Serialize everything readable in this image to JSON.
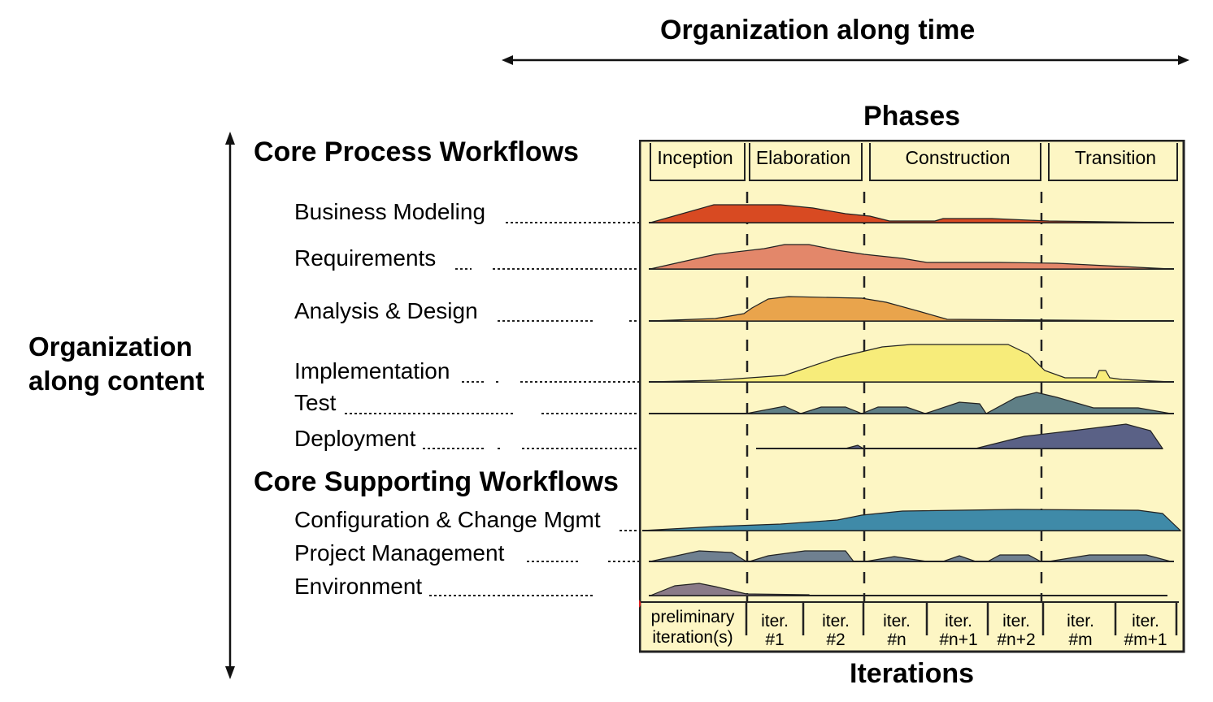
{
  "top_title": "Organization along time",
  "side_title_line1": "Organization",
  "side_title_line2": "along content",
  "phases_title": "Phases",
  "iterations_title": "Iterations",
  "core_process_title": "Core Process Workflows",
  "core_supporting_title": "Core Supporting Workflows",
  "phases": [
    "Inception",
    "Elaboration",
    "Construction",
    "Transition"
  ],
  "workflows": [
    {
      "label": "Business Modeling",
      "color": "#d84a22"
    },
    {
      "label": "Requirements",
      "color": "#e3876a"
    },
    {
      "label": "Analysis & Design",
      "color": "#e9a44c"
    },
    {
      "label": "Implementation",
      "color": "#f7ec7a"
    },
    {
      "label": "Test",
      "color": "#5f7f86"
    },
    {
      "label": "Deployment",
      "color": "#5a6186"
    }
  ],
  "supporting_workflows": [
    {
      "label": "Configuration & Change Mgmt",
      "color": "#3f8aa8"
    },
    {
      "label": "Project Management",
      "color": "#6f8090"
    },
    {
      "label": "Environment",
      "color": "#8a7a88"
    }
  ],
  "iterations": [
    {
      "line1": "preliminary",
      "line2": "iteration(s)"
    },
    {
      "line1": "iter.",
      "line2": "#1"
    },
    {
      "line1": "iter.",
      "line2": "#2"
    },
    {
      "line1": "iter.",
      "line2": "#n"
    },
    {
      "line1": "iter.",
      "line2": "#n+1"
    },
    {
      "line1": "iter.",
      "line2": "#n+2"
    },
    {
      "line1": "iter.",
      "line2": "#m"
    },
    {
      "line1": "iter.",
      "line2": "#m+1"
    }
  ],
  "colors": {
    "panel_bg": "#fdf6c4",
    "border": "#222222"
  }
}
